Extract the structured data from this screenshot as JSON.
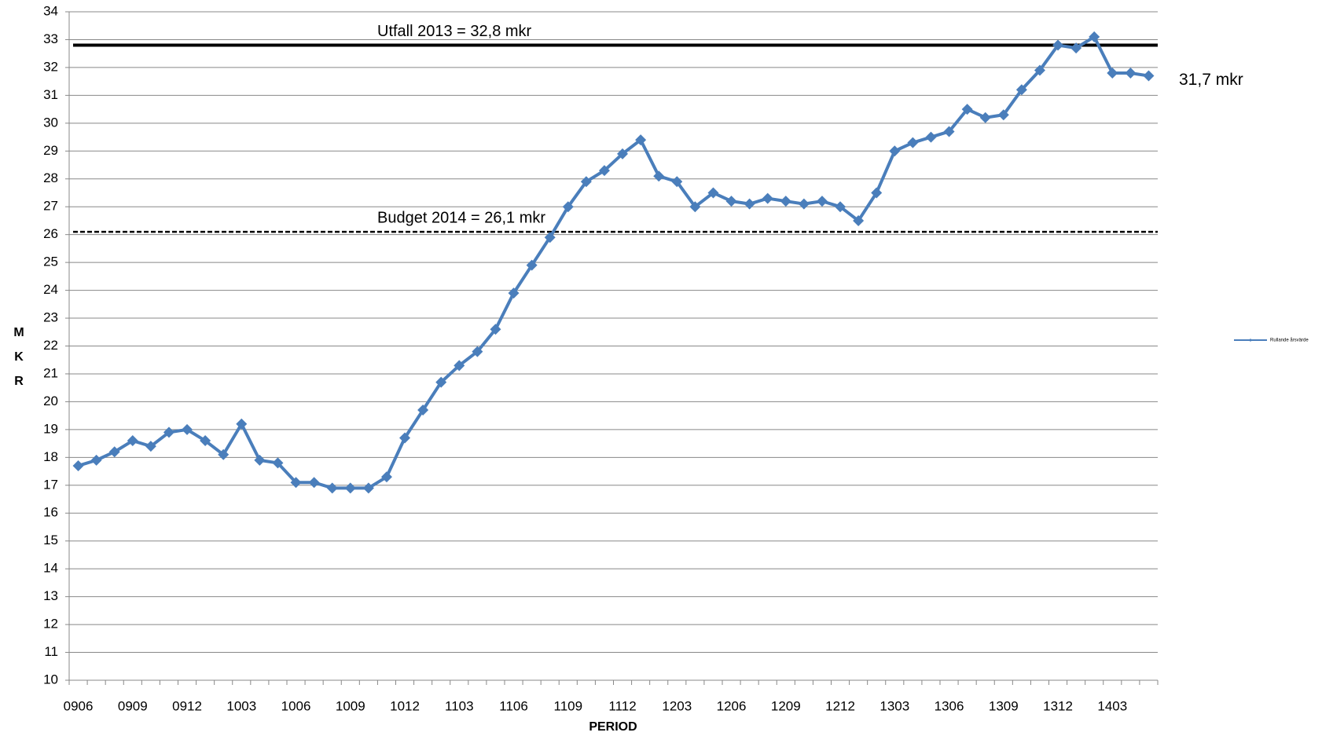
{
  "chart_data": {
    "type": "line",
    "xlabel": "PERIOD",
    "ylabel": "MKR",
    "categories": [
      "0906",
      null,
      null,
      "0909",
      null,
      null,
      "0912",
      null,
      null,
      "1003",
      null,
      null,
      "1006",
      null,
      null,
      "1009",
      null,
      null,
      "1012",
      null,
      null,
      "1103",
      null,
      null,
      "1106",
      null,
      null,
      "1109",
      null,
      null,
      "1112",
      null,
      null,
      "1203",
      null,
      null,
      "1206",
      null,
      null,
      "1209",
      null,
      null,
      "1212",
      null,
      null,
      "1303",
      null,
      null,
      "1306",
      null,
      null,
      "1309",
      null,
      null,
      "1312",
      null,
      null,
      "1403",
      null,
      null
    ],
    "series": [
      {
        "name": "Rullande årsvärde",
        "color": "#4a7ebb",
        "values": [
          17.7,
          17.9,
          18.2,
          18.6,
          18.4,
          18.9,
          19.0,
          18.6,
          18.1,
          19.2,
          17.9,
          17.8,
          17.1,
          17.1,
          16.9,
          16.9,
          16.9,
          17.3,
          18.7,
          19.7,
          20.7,
          21.3,
          21.8,
          22.6,
          23.9,
          24.9,
          25.9,
          27.0,
          27.9,
          28.3,
          28.9,
          29.4,
          28.1,
          27.9,
          27.0,
          27.5,
          27.2,
          27.1,
          27.3,
          27.2,
          27.1,
          27.2,
          27.0,
          26.5,
          27.5,
          29.0,
          29.3,
          29.5,
          29.7,
          30.5,
          30.2,
          30.3,
          31.2,
          31.9,
          32.8,
          32.7,
          33.1,
          31.8,
          31.8,
          31.7
        ]
      }
    ],
    "reference_lines": [
      {
        "label": "Utfall 2013 = 32,8 mkr",
        "value": 32.8,
        "style": "solid",
        "color": "#000000"
      },
      {
        "label": "Budget 2014 = 26,1 mkr",
        "value": 26.1,
        "style": "dashed",
        "color": "#000000"
      }
    ],
    "annotations": [
      "31,7 mkr"
    ],
    "ylim": [
      10,
      34
    ],
    "yticks": [
      10,
      11,
      12,
      13,
      14,
      15,
      16,
      17,
      18,
      19,
      20,
      21,
      22,
      23,
      24,
      25,
      26,
      27,
      28,
      29,
      30,
      31,
      32,
      33,
      34
    ],
    "grid": true,
    "legend": "right"
  }
}
